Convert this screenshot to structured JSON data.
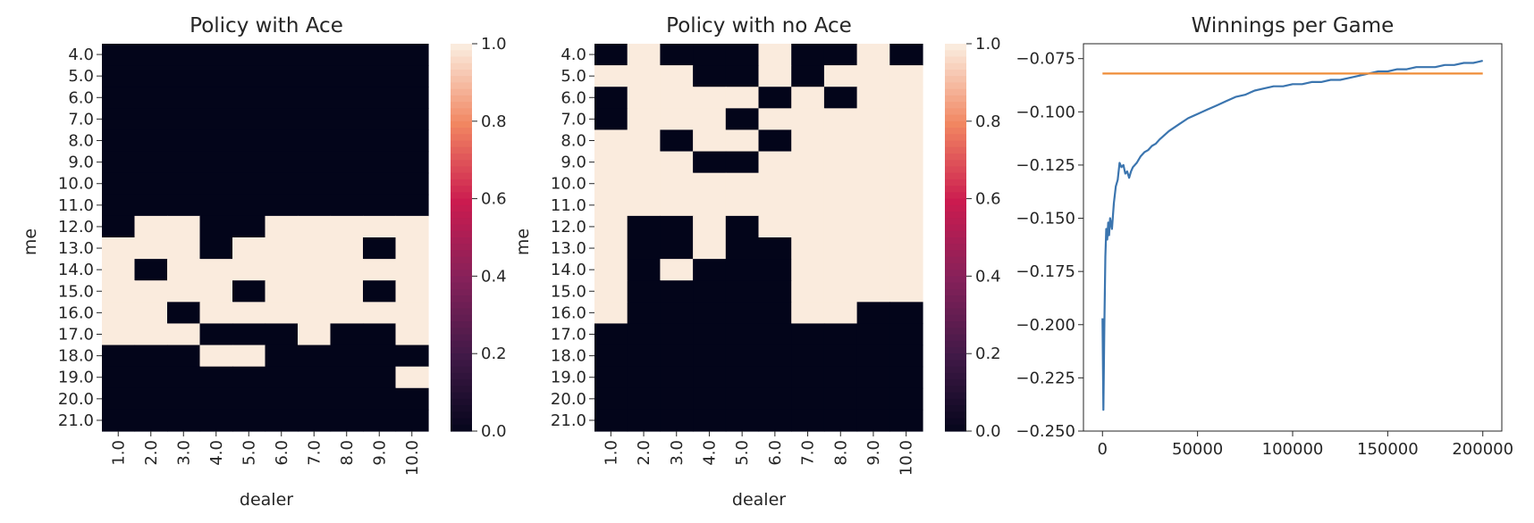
{
  "chart_data": [
    {
      "type": "heatmap",
      "title": "Policy with Ace",
      "xlabel": "dealer",
      "ylabel": "me",
      "x_categories": [
        "1.0",
        "2.0",
        "3.0",
        "4.0",
        "5.0",
        "6.0",
        "7.0",
        "8.0",
        "9.0",
        "10.0"
      ],
      "y_categories": [
        "4.0",
        "5.0",
        "6.0",
        "7.0",
        "8.0",
        "9.0",
        "10.0",
        "11.0",
        "12.0",
        "13.0",
        "14.0",
        "15.0",
        "16.0",
        "17.0",
        "18.0",
        "19.0",
        "20.0",
        "21.0"
      ],
      "values": [
        [
          0,
          0,
          0,
          0,
          0,
          0,
          0,
          0,
          0,
          0
        ],
        [
          0,
          0,
          0,
          0,
          0,
          0,
          0,
          0,
          0,
          0
        ],
        [
          0,
          0,
          0,
          0,
          0,
          0,
          0,
          0,
          0,
          0
        ],
        [
          0,
          0,
          0,
          0,
          0,
          0,
          0,
          0,
          0,
          0
        ],
        [
          0,
          0,
          0,
          0,
          0,
          0,
          0,
          0,
          0,
          0
        ],
        [
          0,
          0,
          0,
          0,
          0,
          0,
          0,
          0,
          0,
          0
        ],
        [
          0,
          0,
          0,
          0,
          0,
          0,
          0,
          0,
          0,
          0
        ],
        [
          0,
          0,
          0,
          0,
          0,
          0,
          0,
          0,
          0,
          0
        ],
        [
          0,
          1,
          1,
          0,
          0,
          1,
          1,
          1,
          1,
          1
        ],
        [
          1,
          1,
          1,
          0,
          1,
          1,
          1,
          1,
          0,
          1
        ],
        [
          1,
          0,
          1,
          1,
          1,
          1,
          1,
          1,
          1,
          1
        ],
        [
          1,
          1,
          1,
          1,
          0,
          1,
          1,
          1,
          0,
          1
        ],
        [
          1,
          1,
          0,
          1,
          1,
          1,
          1,
          1,
          1,
          1
        ],
        [
          1,
          1,
          1,
          0,
          0,
          0,
          1,
          0,
          0,
          1
        ],
        [
          0,
          0,
          0,
          1,
          1,
          0,
          0,
          0,
          0,
          0
        ],
        [
          0,
          0,
          0,
          0,
          0,
          0,
          0,
          0,
          0,
          1
        ],
        [
          0,
          0,
          0,
          0,
          0,
          0,
          0,
          0,
          0,
          0
        ],
        [
          0,
          0,
          0,
          0,
          0,
          0,
          0,
          0,
          0,
          0
        ]
      ],
      "colorbar": {
        "range": [
          0.0,
          1.0
        ],
        "ticks": [
          "0.0",
          "0.2",
          "0.4",
          "0.6",
          "0.8",
          "1.0"
        ]
      }
    },
    {
      "type": "heatmap",
      "title": "Policy with no Ace",
      "xlabel": "dealer",
      "ylabel": "me",
      "x_categories": [
        "1.0",
        "2.0",
        "3.0",
        "4.0",
        "5.0",
        "6.0",
        "7.0",
        "8.0",
        "9.0",
        "10.0"
      ],
      "y_categories": [
        "4.0",
        "5.0",
        "6.0",
        "7.0",
        "8.0",
        "9.0",
        "10.0",
        "11.0",
        "12.0",
        "13.0",
        "14.0",
        "15.0",
        "16.0",
        "17.0",
        "18.0",
        "19.0",
        "20.0",
        "21.0"
      ],
      "values": [
        [
          0,
          1,
          0,
          0,
          0,
          1,
          0,
          0,
          1,
          0
        ],
        [
          1,
          1,
          1,
          0,
          0,
          1,
          0,
          1,
          1,
          1
        ],
        [
          0,
          1,
          1,
          1,
          1,
          0,
          1,
          0,
          1,
          1
        ],
        [
          0,
          1,
          1,
          1,
          0,
          1,
          1,
          1,
          1,
          1
        ],
        [
          1,
          1,
          0,
          1,
          1,
          0,
          1,
          1,
          1,
          1
        ],
        [
          1,
          1,
          1,
          0,
          0,
          1,
          1,
          1,
          1,
          1
        ],
        [
          1,
          1,
          1,
          1,
          1,
          1,
          1,
          1,
          1,
          1
        ],
        [
          1,
          1,
          1,
          1,
          1,
          1,
          1,
          1,
          1,
          1
        ],
        [
          1,
          0,
          0,
          1,
          0,
          1,
          1,
          1,
          1,
          1
        ],
        [
          1,
          0,
          0,
          1,
          0,
          0,
          1,
          1,
          1,
          1
        ],
        [
          1,
          0,
          1,
          0,
          0,
          0,
          1,
          1,
          1,
          1
        ],
        [
          1,
          0,
          0,
          0,
          0,
          0,
          1,
          1,
          1,
          1
        ],
        [
          1,
          0,
          0,
          0,
          0,
          0,
          1,
          1,
          0,
          0
        ],
        [
          0,
          0,
          0,
          0,
          0,
          0,
          0,
          0,
          0,
          0
        ],
        [
          0,
          0,
          0,
          0,
          0,
          0,
          0,
          0,
          0,
          0
        ],
        [
          0,
          0,
          0,
          0,
          0,
          0,
          0,
          0,
          0,
          0
        ],
        [
          0,
          0,
          0,
          0,
          0,
          0,
          0,
          0,
          0,
          0
        ],
        [
          0,
          0,
          0,
          0,
          0,
          0,
          0,
          0,
          0,
          0
        ]
      ],
      "colorbar": {
        "range": [
          0.0,
          1.0
        ],
        "ticks": [
          "0.0",
          "0.2",
          "0.4",
          "0.6",
          "0.8",
          "1.0"
        ]
      }
    },
    {
      "type": "line",
      "title": "Winnings per Game",
      "xlabel": "",
      "ylabel": "",
      "xlim": [
        -10000,
        210000
      ],
      "ylim": [
        -0.25,
        -0.068
      ],
      "x_ticks": [
        0,
        50000,
        100000,
        150000,
        200000
      ],
      "x_tick_labels": [
        "0",
        "50000",
        "100000",
        "150000",
        "200000"
      ],
      "y_ticks": [
        -0.25,
        -0.225,
        -0.2,
        -0.175,
        -0.15,
        -0.125,
        -0.1,
        -0.075
      ],
      "y_tick_labels": [
        "−0.250",
        "−0.225",
        "−0.200",
        "−0.175",
        "−0.150",
        "−0.125",
        "−0.100",
        "−0.075"
      ],
      "series": [
        {
          "color": "#3b75af",
          "x": [
            0,
            500,
            1000,
            1500,
            2000,
            2500,
            3000,
            3500,
            4000,
            5000,
            6000,
            7000,
            8000,
            9000,
            10000,
            11000,
            12000,
            13000,
            14000,
            15000,
            16000,
            18000,
            20000,
            22000,
            24000,
            26000,
            28000,
            30000,
            35000,
            40000,
            45000,
            50000,
            55000,
            60000,
            65000,
            70000,
            75000,
            80000,
            85000,
            90000,
            95000,
            100000,
            105000,
            110000,
            115000,
            120000,
            125000,
            130000,
            135000,
            140000,
            145000,
            150000,
            155000,
            160000,
            165000,
            170000,
            175000,
            180000,
            185000,
            190000,
            195000,
            200000
          ],
          "y": [
            -0.197,
            -0.24,
            -0.2,
            -0.168,
            -0.155,
            -0.16,
            -0.152,
            -0.158,
            -0.15,
            -0.155,
            -0.143,
            -0.135,
            -0.132,
            -0.124,
            -0.126,
            -0.125,
            -0.129,
            -0.128,
            -0.131,
            -0.128,
            -0.126,
            -0.124,
            -0.121,
            -0.119,
            -0.118,
            -0.116,
            -0.115,
            -0.113,
            -0.109,
            -0.106,
            -0.103,
            -0.101,
            -0.099,
            -0.097,
            -0.095,
            -0.093,
            -0.092,
            -0.09,
            -0.089,
            -0.088,
            -0.088,
            -0.087,
            -0.087,
            -0.086,
            -0.086,
            -0.085,
            -0.085,
            -0.084,
            -0.083,
            -0.082,
            -0.081,
            -0.081,
            -0.08,
            -0.08,
            -0.079,
            -0.079,
            -0.079,
            -0.078,
            -0.078,
            -0.077,
            -0.077,
            -0.076
          ]
        },
        {
          "color": "#ef8d39",
          "x": [
            0,
            200000
          ],
          "y": [
            -0.082,
            -0.082
          ]
        }
      ]
    }
  ]
}
